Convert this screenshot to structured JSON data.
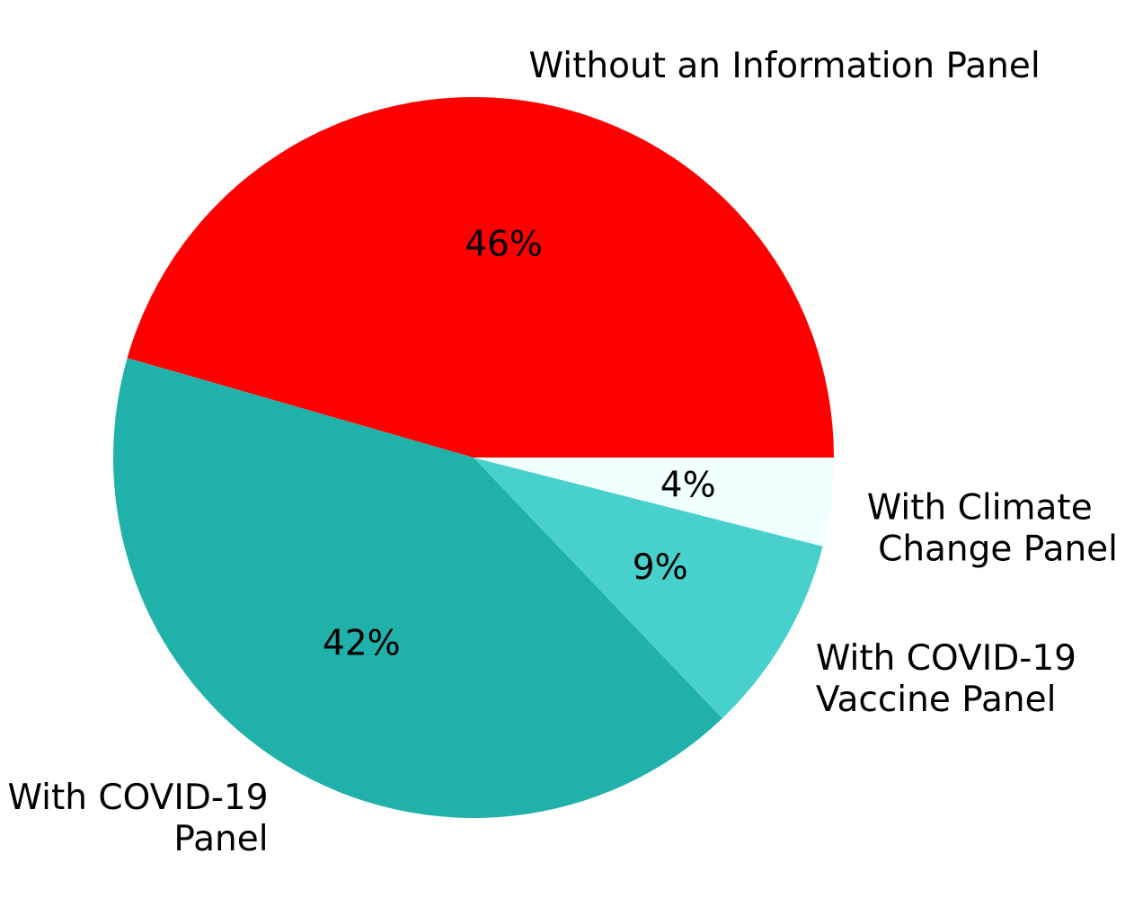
{
  "chart_data": {
    "type": "pie",
    "start": "counterclockwise from 0 degrees (3 o'clock)",
    "slices": [
      {
        "label_lines": [
          "Without an Information Panel"
        ],
        "value": 46,
        "pct_label": "46%",
        "color": "#ff0000"
      },
      {
        "label_lines": [
          "With COVID-19",
          "Panel"
        ],
        "value": 42,
        "pct_label": "42%",
        "color": "#20b2aa"
      },
      {
        "label_lines": [
          "With COVID-19",
          "Vaccine Panel"
        ],
        "value": 9,
        "pct_label": "9%",
        "color": "#48d1cc"
      },
      {
        "label_lines": [
          "With Climate",
          " Change Panel"
        ],
        "value": 4,
        "pct_label": "4%",
        "color": "#f0ffff"
      }
    ]
  }
}
